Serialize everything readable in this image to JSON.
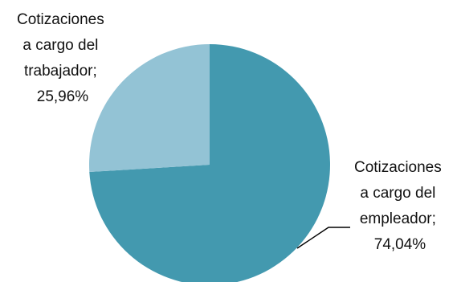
{
  "chart_data": {
    "type": "pie",
    "slices": [
      {
        "label_lines": [
          "Cotizaciones",
          "a cargo del",
          "empleador;",
          "74,04%"
        ],
        "category": "Cotizaciones a cargo del empleador",
        "value": 74.04,
        "color": "#4399AF"
      },
      {
        "label_lines": [
          "Cotizaciones",
          "a cargo del",
          "trabajador;",
          "25,96%"
        ],
        "category": "Cotizaciones a cargo del trabajador",
        "value": 25.96,
        "color": "#93C3D5"
      }
    ],
    "leader_line_color": "#000000"
  }
}
